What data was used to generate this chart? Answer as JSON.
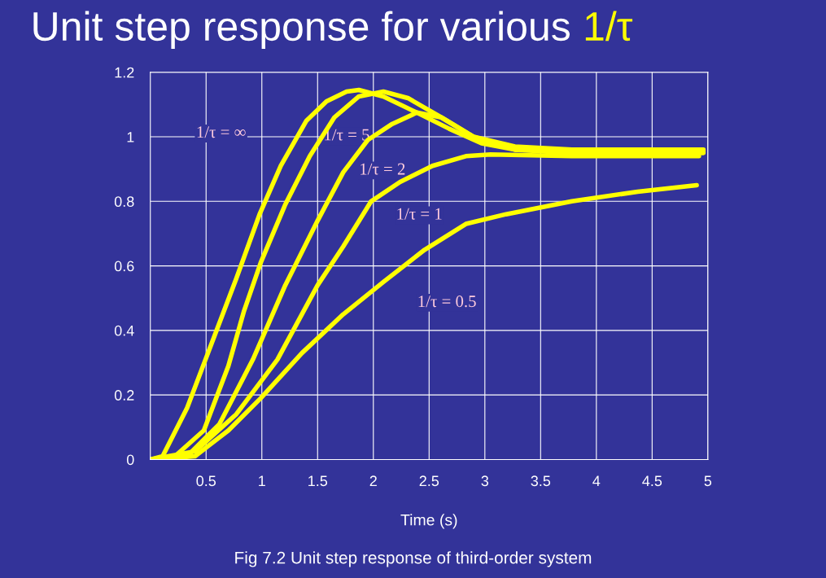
{
  "chart_data": {
    "type": "line",
    "title": "Unit step response for various 1/τ",
    "xlabel": "Time (s)",
    "xlim": [
      0,
      5
    ],
    "ylim": [
      0,
      1.2
    ],
    "xticks": [
      0.5,
      1,
      1.5,
      2,
      2.5,
      3,
      3.5,
      4,
      4.5,
      5
    ],
    "yticks": [
      0,
      0.2,
      0.4,
      0.6,
      0.8,
      1,
      1.2
    ],
    "grid": true,
    "line_style": "solid",
    "marker": "none",
    "series": [
      {
        "name": "1/τ = ∞",
        "color": "#ffff00",
        "x": [
          0,
          0.11,
          0.33,
          0.55,
          0.77,
          0.98,
          1.17,
          1.4,
          1.58,
          1.76,
          1.87,
          2.09,
          2.39,
          2.68,
          2.97,
          3.27,
          3.78,
          4.96
        ],
        "values": [
          0.0,
          0.01,
          0.16,
          0.36,
          0.56,
          0.76,
          0.91,
          1.05,
          1.11,
          1.14,
          1.145,
          1.125,
          1.075,
          1.025,
          0.98,
          0.96,
          0.955,
          0.955
        ]
      },
      {
        "name": "1/τ = 5",
        "color": "#ffff00",
        "x": [
          0,
          0.22,
          0.48,
          0.7,
          0.84,
          0.99,
          1.21,
          1.43,
          1.65,
          1.87,
          2.09,
          2.31,
          2.61,
          2.9,
          3.27,
          3.78,
          4.96
        ],
        "values": [
          0.0,
          0.01,
          0.09,
          0.29,
          0.46,
          0.61,
          0.79,
          0.94,
          1.06,
          1.125,
          1.14,
          1.12,
          1.06,
          1.0,
          0.97,
          0.96,
          0.96
        ]
      },
      {
        "name": "1/τ = 2",
        "color": "#ffff00",
        "x": [
          0,
          0.33,
          0.62,
          0.92,
          1.21,
          1.5,
          1.73,
          1.95,
          2.17,
          2.39,
          2.61,
          2.9,
          3.27,
          3.78,
          4.96
        ],
        "values": [
          0.0,
          0.01,
          0.11,
          0.31,
          0.54,
          0.74,
          0.89,
          0.99,
          1.04,
          1.075,
          1.06,
          1.0,
          0.96,
          0.95,
          0.95
        ]
      },
      {
        "name": "1/τ = 1",
        "color": "#ffff00",
        "x": [
          0,
          0.4,
          0.77,
          1.14,
          1.5,
          1.73,
          1.98,
          2.24,
          2.53,
          2.83,
          3.05,
          3.78,
          4.92
        ],
        "values": [
          0.0,
          0.025,
          0.14,
          0.31,
          0.54,
          0.66,
          0.8,
          0.86,
          0.91,
          0.94,
          0.945,
          0.94,
          0.94
        ]
      },
      {
        "name": "1/τ = 0.5",
        "color": "#ffff00",
        "x": [
          0,
          0.4,
          0.7,
          0.99,
          1.36,
          1.73,
          2.09,
          2.46,
          2.83,
          3.19,
          3.78,
          4.37,
          4.9
        ],
        "values": [
          0.0,
          0.01,
          0.09,
          0.19,
          0.33,
          0.45,
          0.55,
          0.65,
          0.73,
          0.76,
          0.8,
          0.83,
          0.85
        ]
      }
    ],
    "annotations": [
      "Fig 7.2 Unit step response of third-order system"
    ]
  }
}
